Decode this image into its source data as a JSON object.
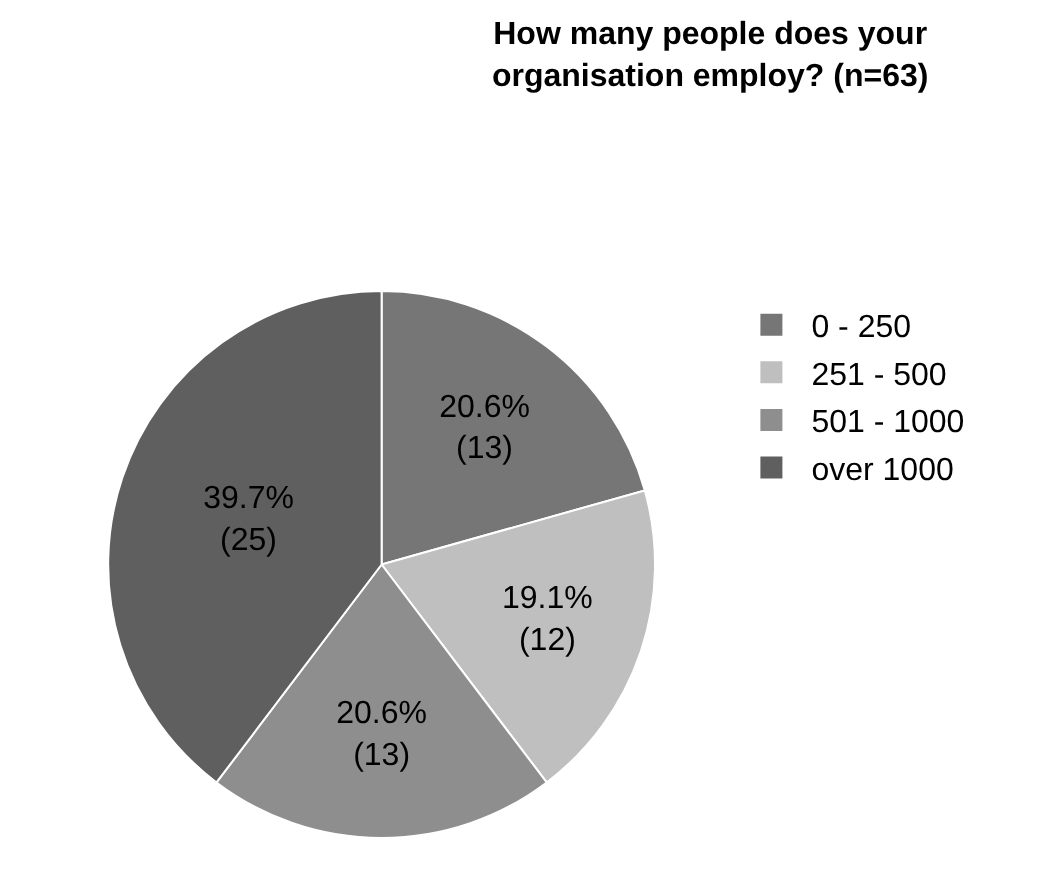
{
  "chart_data": {
    "type": "pie",
    "title": "How many people does your\norganisation employ? (n=63)",
    "categories": [
      "0 - 250",
      "251 - 500",
      "501 - 1000",
      "over 1000"
    ],
    "values": [
      13,
      12,
      13,
      25
    ],
    "value_labels": [
      "20.6%\n(13)",
      "19.1%\n(12)",
      "20.6%\n(13)",
      "39.7%\n(25)"
    ],
    "colors": [
      "#767676",
      "#bfbfbf",
      "#8e8e8e",
      "#5f5f5f"
    ],
    "legend": "right"
  }
}
